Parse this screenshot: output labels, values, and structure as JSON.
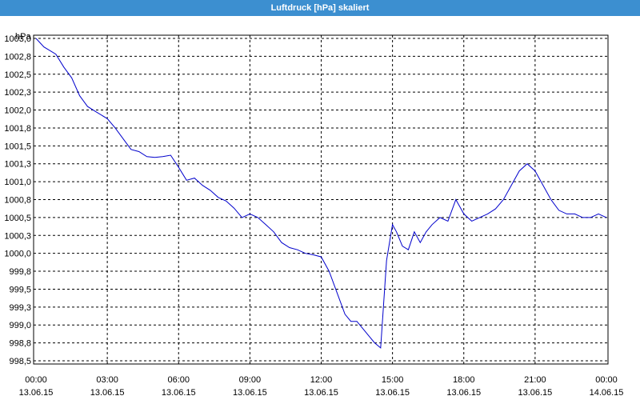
{
  "window": {
    "title": "Luftdruck [hPa] skaliert"
  },
  "colors": {
    "titlebar": "#3c8fd0",
    "series": "#0000cc",
    "grid": "#000000",
    "background": "#ffffff"
  },
  "chart_data": {
    "type": "line",
    "title": "Luftdruck [hPa] skaliert",
    "ylabel": "hPa",
    "xlabel": "",
    "grid": true,
    "ylim": [
      998.5,
      1003.0
    ],
    "xlim_hours": [
      0,
      24
    ],
    "y_ticks": [
      "1003,0",
      "1002,8",
      "1002,5",
      "1002,3",
      "1002,0",
      "1001,8",
      "1001,5",
      "1001,3",
      "1001,0",
      "1000,8",
      "1000,5",
      "1000,3",
      "1000,0",
      "999,8",
      "999,5",
      "999,3",
      "999,0",
      "998,8",
      "998,5"
    ],
    "x_ticks": [
      {
        "time": "00:00",
        "date": "13.06.15"
      },
      {
        "time": "03:00",
        "date": "13.06.15"
      },
      {
        "time": "06:00",
        "date": "13.06.15"
      },
      {
        "time": "09:00",
        "date": "13.06.15"
      },
      {
        "time": "12:00",
        "date": "13.06.15"
      },
      {
        "time": "15:00",
        "date": "13.06.15"
      },
      {
        "time": "18:00",
        "date": "13.06.15"
      },
      {
        "time": "21:00",
        "date": "13.06.15"
      },
      {
        "time": "00:00",
        "date": "14.06.15"
      }
    ],
    "series": [
      {
        "x": [
          "13.06.15 00:00",
          "13.06.15 00:20",
          "13.06.15 00:50",
          "13.06.15 01:10",
          "13.06.15 01:30",
          "13.06.15 01:50",
          "13.06.15 02:10",
          "13.06.15 02:30",
          "13.06.15 03:00",
          "13.06.15 03:20",
          "13.06.15 03:40",
          "13.06.15 04:00",
          "13.06.15 04:20",
          "13.06.15 04:40",
          "13.06.15 05:00",
          "13.06.15 05:20",
          "13.06.15 05:40",
          "13.06.15 06:00",
          "13.06.15 06:20",
          "13.06.15 06:40",
          "13.06.15 07:00",
          "13.06.15 07:20",
          "13.06.15 07:40",
          "13.06.15 08:00",
          "13.06.15 08:20",
          "13.06.15 08:40",
          "13.06.15 09:00",
          "13.06.15 09:20",
          "13.06.15 09:40",
          "13.06.15 10:00",
          "13.06.15 10:20",
          "13.06.15 10:40",
          "13.06.15 11:00",
          "13.06.15 11:20",
          "13.06.15 11:40",
          "13.06.15 12:00",
          "13.06.15 12:20",
          "13.06.15 12:40",
          "13.06.15 13:00",
          "13.06.15 13:15",
          "13.06.15 13:30",
          "13.06.15 13:45",
          "13.06.15 14:00",
          "13.06.15 14:15",
          "13.06.15 14:30",
          "13.06.15 14:45",
          "13.06.15 15:00",
          "13.06.15 15:10",
          "13.06.15 15:25",
          "13.06.15 15:40",
          "13.06.15 15:55",
          "13.06.15 16:10",
          "13.06.15 16:25",
          "13.06.15 16:40",
          "13.06.15 17:00",
          "13.06.15 17:20",
          "13.06.15 17:40",
          "13.06.15 18:00",
          "13.06.15 18:20",
          "13.06.15 18:40",
          "13.06.15 19:00",
          "13.06.15 19:20",
          "13.06.15 19:40",
          "13.06.15 20:00",
          "13.06.15 20:20",
          "13.06.15 20:40",
          "13.06.15 21:00",
          "13.06.15 21:20",
          "13.06.15 21:40",
          "13.06.15 22:00",
          "13.06.15 22:20",
          "13.06.15 22:40",
          "13.06.15 23:00",
          "13.06.15 23:20",
          "13.06.15 23:40",
          "14.06.15 00:00"
        ],
        "values": [
          1003.0,
          1002.88,
          1002.78,
          1002.6,
          1002.45,
          1002.2,
          1002.05,
          1001.98,
          1001.88,
          1001.75,
          1001.6,
          1001.45,
          1001.42,
          1001.35,
          1001.34,
          1001.35,
          1001.37,
          1001.2,
          1001.02,
          1001.05,
          1000.95,
          1000.88,
          1000.78,
          1000.73,
          1000.63,
          1000.5,
          1000.55,
          1000.5,
          1000.4,
          1000.3,
          1000.15,
          1000.08,
          1000.05,
          1000.0,
          999.98,
          999.95,
          999.75,
          999.45,
          999.15,
          999.05,
          999.05,
          998.95,
          998.85,
          998.75,
          998.68,
          999.9,
          1000.4,
          1000.3,
          1000.1,
          1000.05,
          1000.3,
          1000.15,
          1000.3,
          1000.4,
          1000.5,
          1000.45,
          1000.75,
          1000.55,
          1000.45,
          1000.5,
          1000.55,
          1000.62,
          1000.75,
          1000.95,
          1001.15,
          1001.25,
          1001.15,
          1000.95,
          1000.75,
          1000.6,
          1000.55,
          1000.55,
          1000.5,
          1000.5,
          1000.55,
          1000.5
        ]
      }
    ]
  }
}
